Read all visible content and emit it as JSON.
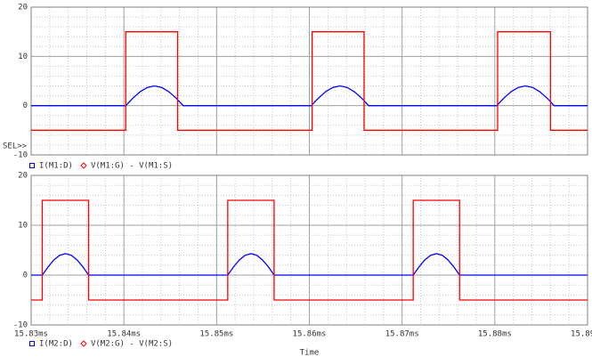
{
  "chart_data": [
    {
      "type": "line",
      "annotation": "SEL>>",
      "xlim": [
        15.83,
        15.89
      ],
      "xticks": [
        15.83,
        15.84,
        15.85,
        15.86,
        15.87,
        15.88,
        15.89
      ],
      "ylim": [
        -10,
        20
      ],
      "yticks": [
        -10,
        0,
        10,
        20
      ],
      "grid": true,
      "series": [
        {
          "name": "I(M1:D)",
          "color": "#0000ff",
          "marker": "square",
          "x": [
            15.83,
            15.8402,
            15.84098,
            15.84175,
            15.84253,
            15.8433,
            15.84408,
            15.84485,
            15.84563,
            15.8464,
            15.8602,
            15.86098,
            15.86175,
            15.86253,
            15.8633,
            15.86408,
            15.86485,
            15.86563,
            15.8664,
            15.8802,
            15.88098,
            15.88175,
            15.88253,
            15.8833,
            15.88408,
            15.88485,
            15.88563,
            15.8864,
            15.89
          ],
          "values": [
            0,
            0,
            1.53,
            2.83,
            3.7,
            4,
            3.7,
            2.83,
            1.53,
            0,
            0,
            1.53,
            2.83,
            3.7,
            4,
            3.7,
            2.83,
            1.53,
            0,
            0,
            1.53,
            2.83,
            3.7,
            4,
            3.7,
            2.83,
            1.53,
            0,
            0
          ]
        },
        {
          "name": "V(M1:G) - V(M1:S)",
          "color": "#ff0000",
          "marker": "diamond",
          "x": [
            15.83,
            15.8402,
            15.8402,
            15.8458,
            15.8458,
            15.8603,
            15.8603,
            15.8659,
            15.8659,
            15.8803,
            15.8803,
            15.886,
            15.886,
            15.89
          ],
          "values": [
            -5,
            -5,
            15,
            15,
            -5,
            -5,
            15,
            15,
            -5,
            -5,
            15,
            15,
            -5,
            -5
          ]
        }
      ]
    },
    {
      "type": "line",
      "xlabel": "Time",
      "xlim": [
        15.83,
        15.89
      ],
      "xticks": [
        {
          "value": 15.83,
          "label": "15.83ms"
        },
        {
          "value": 15.84,
          "label": "15.84ms"
        },
        {
          "value": 15.85,
          "label": "15.85ms"
        },
        {
          "value": 15.86,
          "label": "15.86ms"
        },
        {
          "value": 15.87,
          "label": "15.87ms"
        },
        {
          "value": 15.88,
          "label": "15.88ms"
        },
        {
          "value": 15.89,
          "label": "15.89ms"
        }
      ],
      "ylim": [
        -10,
        20
      ],
      "yticks": [
        -10,
        0,
        10,
        20
      ],
      "grid": true,
      "series": [
        {
          "name": "I(M2:D)",
          "color": "#0000ff",
          "marker": "square",
          "x": [
            15.83,
            15.8312,
            15.83183,
            15.83245,
            15.83308,
            15.8337,
            15.83433,
            15.83495,
            15.83558,
            15.8362,
            15.8512,
            15.85183,
            15.85245,
            15.85308,
            15.8537,
            15.85433,
            15.85495,
            15.85558,
            15.8562,
            15.8712,
            15.87183,
            15.87245,
            15.87308,
            15.8737,
            15.87433,
            15.87495,
            15.87558,
            15.8762,
            15.89
          ],
          "values": [
            0,
            0,
            1.65,
            3.04,
            3.97,
            4.3,
            3.97,
            3.04,
            1.65,
            0,
            0,
            1.65,
            3.04,
            3.97,
            4.3,
            3.97,
            3.04,
            1.65,
            0,
            0,
            1.65,
            3.04,
            3.97,
            4.3,
            3.97,
            3.04,
            1.65,
            0,
            0
          ]
        },
        {
          "name": "V(M2:G) - V(M2:S)",
          "color": "#ff0000",
          "marker": "diamond",
          "x": [
            15.83,
            15.8312,
            15.8312,
            15.8362,
            15.8362,
            15.8512,
            15.8512,
            15.8562,
            15.8562,
            15.8712,
            15.8712,
            15.8762,
            15.8762,
            15.89
          ],
          "values": [
            -5,
            -5,
            15,
            15,
            -5,
            -5,
            15,
            15,
            -5,
            -5,
            15,
            15,
            -5,
            -5
          ]
        }
      ]
    }
  ]
}
